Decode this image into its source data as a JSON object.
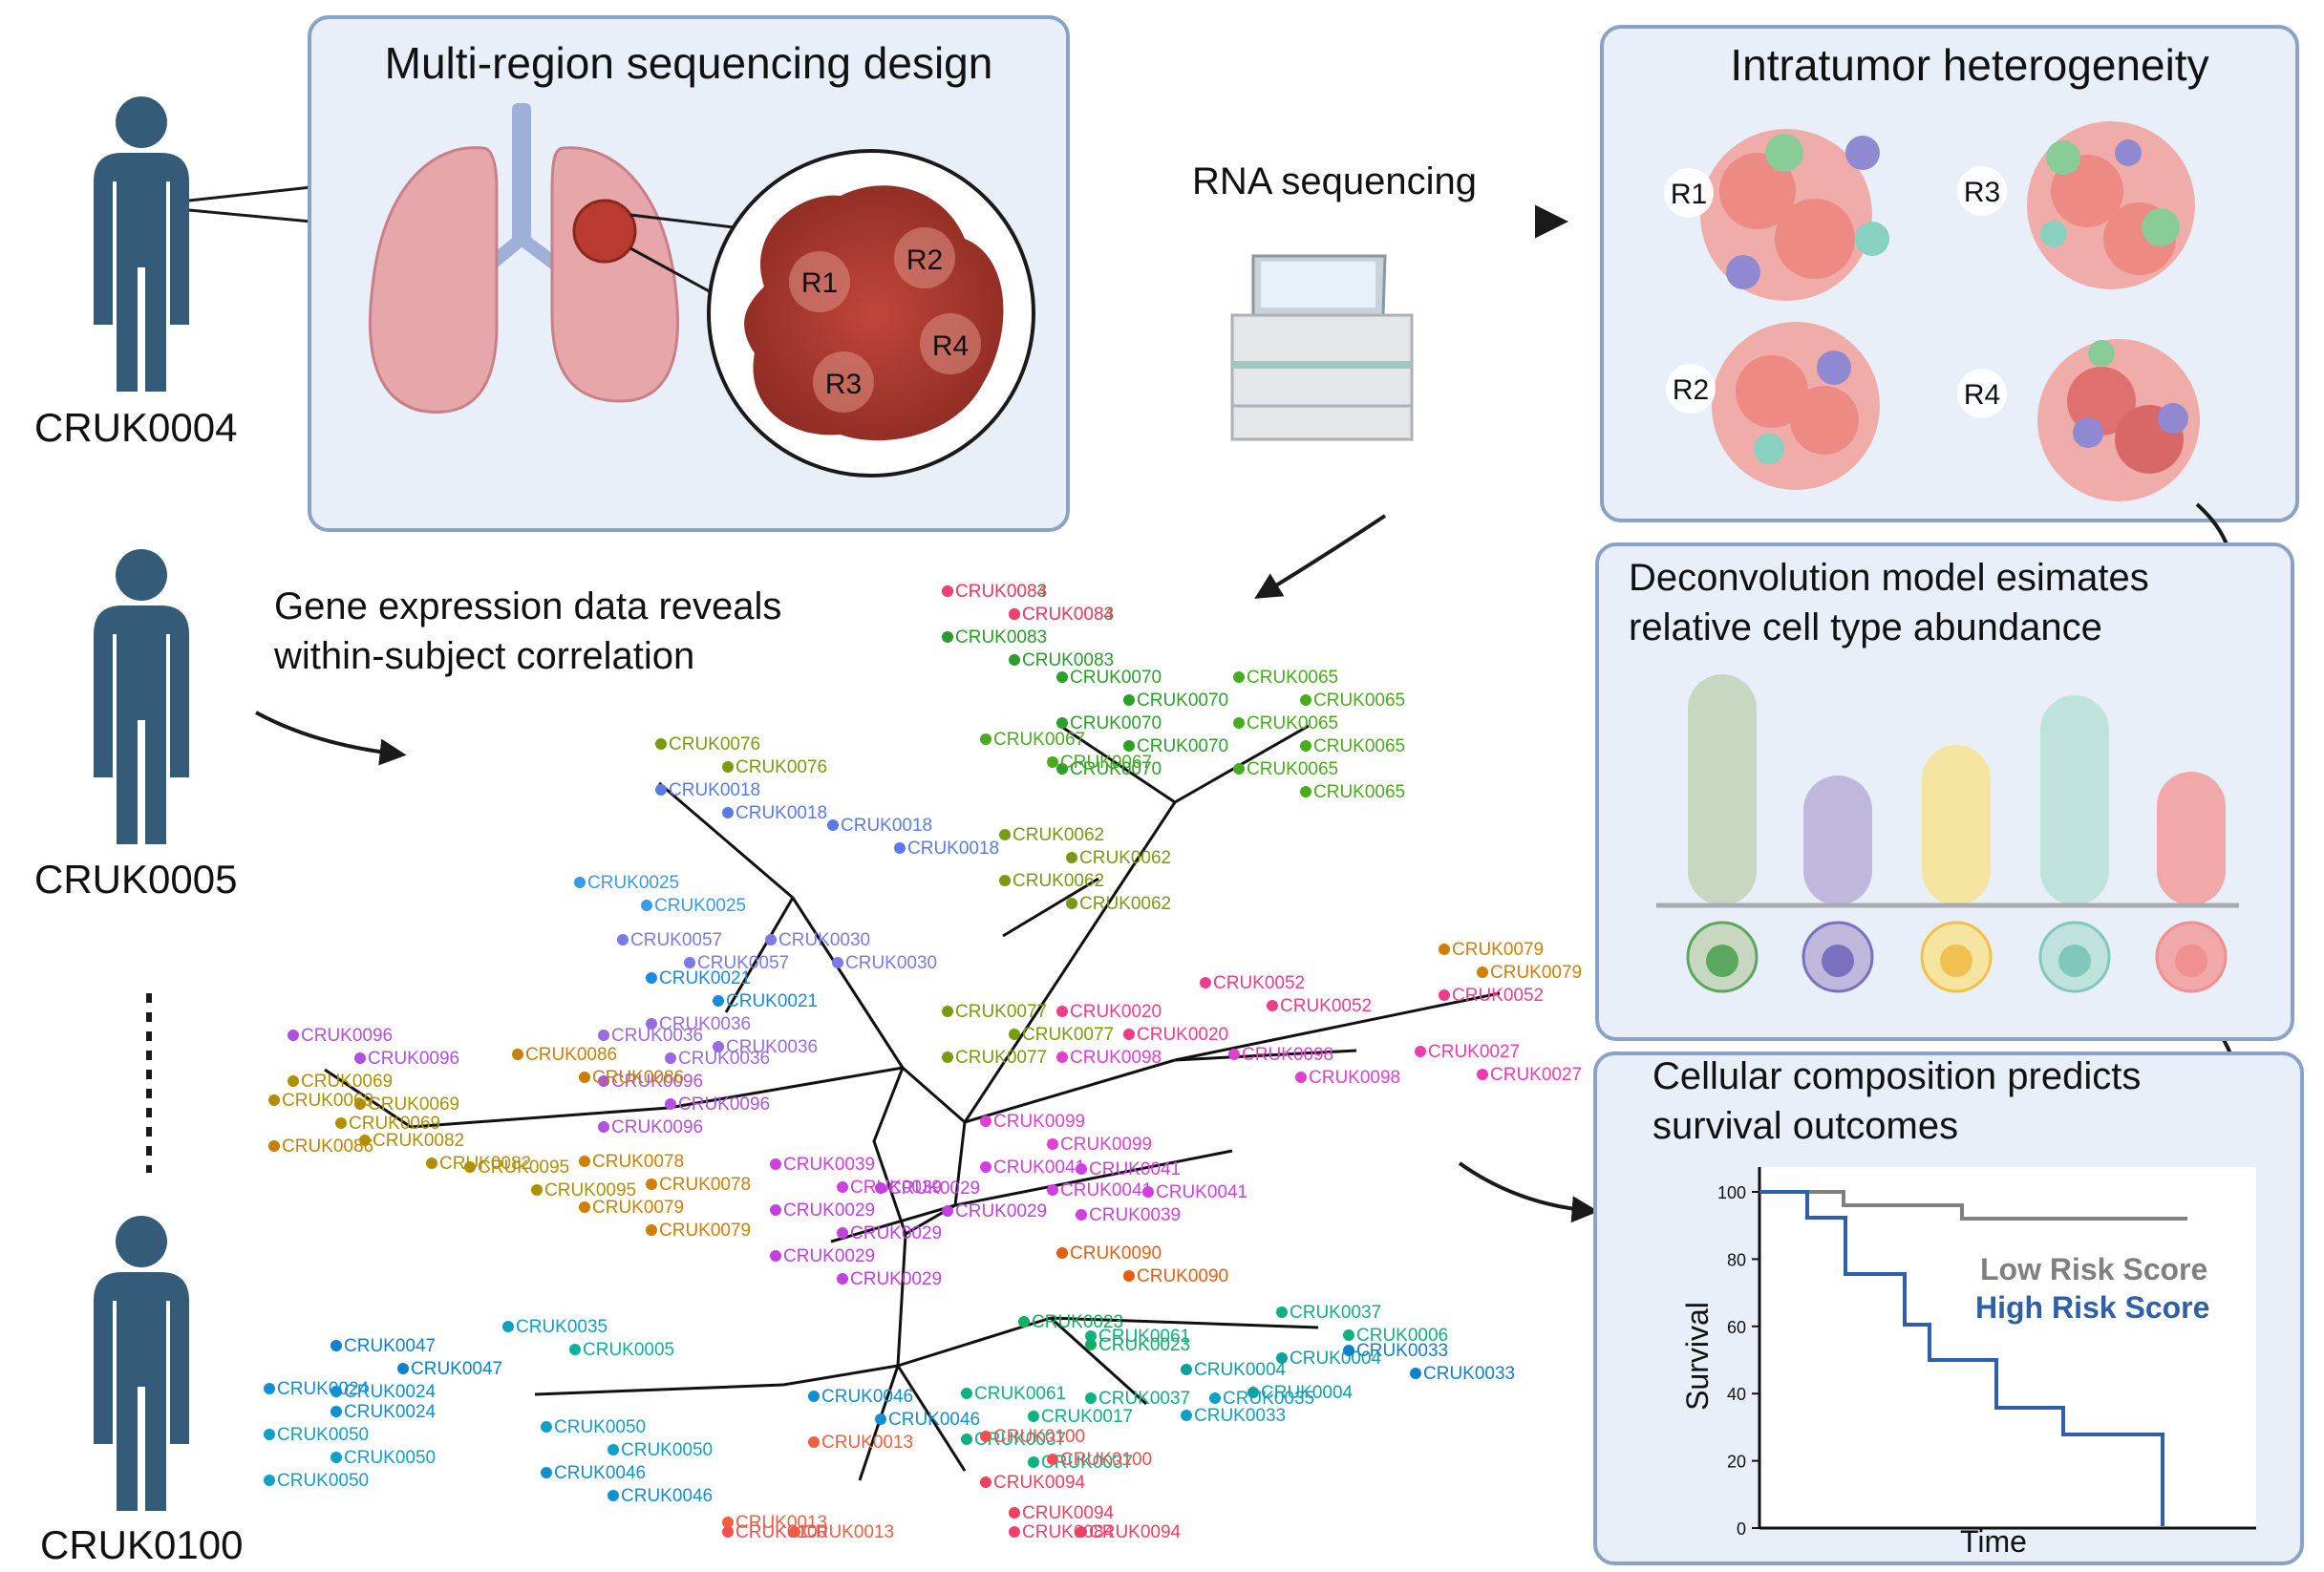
{
  "subjects": [
    "CRUK0004",
    "CRUK0005",
    "CRUK0100"
  ],
  "panels": {
    "design_title": "Multi-region sequencing design",
    "itx_title": "Intratumor heterogeneity",
    "deconv_title_1": "Deconvolution model esimates",
    "deconv_title_2": "relative cell type abundance",
    "surv_title_1": "Cellular composition predicts",
    "surv_title_2": "survival outcomes",
    "gene_title_1": "Gene expression data reveals",
    "gene_title_2": "within-subject correlation"
  },
  "arrow_rna": "RNA sequencing",
  "regions": [
    "R1",
    "R2",
    "R3",
    "R4"
  ],
  "colors": {
    "person": "#345b78",
    "panel_bg": "#e8eff8",
    "panel_border": "#8aa2c8",
    "tumor": "#a8362c",
    "low_risk": "#808080",
    "high_risk": "#2f5fa7"
  },
  "cell_bars": [
    {
      "color": "#c8d8c0",
      "cell": "#5aa860"
    },
    {
      "color": "#c0b8dc",
      "cell": "#7a70c0"
    },
    {
      "color": "#f4e4a0",
      "cell": "#f0c050"
    },
    {
      "color": "#bfe3dc",
      "cell": "#80c8bc"
    },
    {
      "color": "#f0a8a8",
      "cell": "#f09090"
    }
  ],
  "survival": {
    "y_ticks": [
      "100",
      "80",
      "60",
      "40",
      "20",
      "0"
    ],
    "ylabel": "Survival",
    "xlabel": "Time",
    "legend_low": "Low Risk Score",
    "legend_high": "High Risk Score"
  },
  "tree_labels": [
    {
      "t": "CRUK0083",
      "c": "#2c9a2c"
    },
    {
      "t": "CRUK0083",
      "c": "#2c9a2c"
    },
    {
      "t": "CRUK0083",
      "c": "#2c9a2c"
    },
    {
      "t": "CRUK0083",
      "c": "#2c9a2c"
    },
    {
      "t": "CRUK0070",
      "c": "#2ca02c"
    },
    {
      "t": "CRUK0070",
      "c": "#2ca02c"
    },
    {
      "t": "CRUK0070",
      "c": "#2ca02c"
    },
    {
      "t": "CRUK0070",
      "c": "#2ca02c"
    },
    {
      "t": "CRUK0070",
      "c": "#2ca02c"
    },
    {
      "t": "CRUK0065",
      "c": "#4aaa20"
    },
    {
      "t": "CRUK0065",
      "c": "#4aaa20"
    },
    {
      "t": "CRUK0065",
      "c": "#4aaa20"
    },
    {
      "t": "CRUK0065",
      "c": "#4aaa20"
    },
    {
      "t": "CRUK0065",
      "c": "#4aaa20"
    },
    {
      "t": "CRUK0065",
      "c": "#4aaa20"
    },
    {
      "t": "CRUK0067",
      "c": "#4aaa20"
    },
    {
      "t": "CRUK0067",
      "c": "#4aaa20"
    },
    {
      "t": "CRUK0062",
      "c": "#7a9a10"
    },
    {
      "t": "CRUK0062",
      "c": "#7a9a10"
    },
    {
      "t": "CRUK0062",
      "c": "#7a9a10"
    },
    {
      "t": "CRUK0062",
      "c": "#7a9a10"
    },
    {
      "t": "CRUK0077",
      "c": "#7a9a10"
    },
    {
      "t": "CRUK0077",
      "c": "#7a9a10"
    },
    {
      "t": "CRUK0077",
      "c": "#7a9a10"
    },
    {
      "t": "CRUK0076",
      "c": "#7a9a10"
    },
    {
      "t": "CRUK0076",
      "c": "#7a9a10"
    },
    {
      "t": "CRUK0018",
      "c": "#5a7ae8"
    },
    {
      "t": "CRUK0018",
      "c": "#5a7ae8"
    },
    {
      "t": "CRUK0018",
      "c": "#5a7ae8"
    },
    {
      "t": "CRUK0018",
      "c": "#5a7ae8"
    },
    {
      "t": "CRUK0025",
      "c": "#3a9ae8"
    },
    {
      "t": "CRUK0025",
      "c": "#3a9ae8"
    },
    {
      "t": "CRUK0057",
      "c": "#7a7ae8"
    },
    {
      "t": "CRUK0057",
      "c": "#7a7ae8"
    },
    {
      "t": "CRUK0030",
      "c": "#7a7ae8"
    },
    {
      "t": "CRUK0030",
      "c": "#7a7ae8"
    },
    {
      "t": "CRUK0021",
      "c": "#1a8ae0"
    },
    {
      "t": "CRUK0021",
      "c": "#1a8ae0"
    },
    {
      "t": "CRUK0036",
      "c": "#9a6ae0"
    },
    {
      "t": "CRUK0036",
      "c": "#9a6ae0"
    },
    {
      "t": "CRUK0036",
      "c": "#9a6ae0"
    },
    {
      "t": "CRUK0036",
      "c": "#9a6ae0"
    },
    {
      "t": "CRUK0096",
      "c": "#b050e0"
    },
    {
      "t": "CRUK0096",
      "c": "#b050e0"
    },
    {
      "t": "CRUK0096",
      "c": "#b050e0"
    },
    {
      "t": "CRUK0096",
      "c": "#b050e0"
    },
    {
      "t": "CRUK0096",
      "c": "#b050e0"
    },
    {
      "t": "CRUK0069",
      "c": "#b09000"
    },
    {
      "t": "CRUK0069",
      "c": "#b09000"
    },
    {
      "t": "CRUK0069",
      "c": "#b09000"
    },
    {
      "t": "CRUK0069",
      "c": "#b09000"
    },
    {
      "t": "CRUK0086",
      "c": "#c88000"
    },
    {
      "t": "CRUK0086",
      "c": "#c88000"
    },
    {
      "t": "CRUK0086",
      "c": "#c88000"
    },
    {
      "t": "CRUK0082",
      "c": "#b09000"
    },
    {
      "t": "CRUK0082",
      "c": "#b09000"
    },
    {
      "t": "CRUK0095",
      "c": "#b09000"
    },
    {
      "t": "CRUK0095",
      "c": "#b09000"
    },
    {
      "t": "CRUK0078",
      "c": "#d08000"
    },
    {
      "t": "CRUK0078",
      "c": "#d08000"
    },
    {
      "t": "CRUK0079",
      "c": "#d08000"
    },
    {
      "t": "CRUK0079",
      "c": "#d08000"
    },
    {
      "t": "CRUK0079",
      "c": "#d08000"
    },
    {
      "t": "CRUK0079",
      "c": "#d08000"
    },
    {
      "t": "CRUK0052",
      "c": "#f03c8c"
    },
    {
      "t": "CRUK0052",
      "c": "#f03c8c"
    },
    {
      "t": "CRUK0052",
      "c": "#f03c8c"
    },
    {
      "t": "CRUK0027",
      "c": "#f03cb0"
    },
    {
      "t": "CRUK0027",
      "c": "#f03cb0"
    },
    {
      "t": "CRUK0020",
      "c": "#f03c8c"
    },
    {
      "t": "CRUK0020",
      "c": "#f03c8c"
    },
    {
      "t": "CRUK0098",
      "c": "#e040d0"
    },
    {
      "t": "CRUK0098",
      "c": "#e040d0"
    },
    {
      "t": "CRUK0098",
      "c": "#e040d0"
    },
    {
      "t": "CRUK0099",
      "c": "#e040d0"
    },
    {
      "t": "CRUK0099",
      "c": "#e040d0"
    },
    {
      "t": "CRUK0041",
      "c": "#d040e0"
    },
    {
      "t": "CRUK0041",
      "c": "#d040e0"
    },
    {
      "t": "CRUK0041",
      "c": "#d040e0"
    },
    {
      "t": "CRUK0041",
      "c": "#d040e0"
    },
    {
      "t": "CRUK0039",
      "c": "#d040e0"
    },
    {
      "t": "CRUK0039",
      "c": "#d040e0"
    },
    {
      "t": "CRUK0039",
      "c": "#d040e0"
    },
    {
      "t": "CRUK0029",
      "c": "#c040e0"
    },
    {
      "t": "CRUK0029",
      "c": "#c040e0"
    },
    {
      "t": "CRUK0029",
      "c": "#c040e0"
    },
    {
      "t": "CRUK0029",
      "c": "#c040e0"
    },
    {
      "t": "CRUK0029",
      "c": "#c040e0"
    },
    {
      "t": "CRUK0029",
      "c": "#c040e0"
    },
    {
      "t": "CRUK0090",
      "c": "#e06010"
    },
    {
      "t": "CRUK0090",
      "c": "#e06010"
    },
    {
      "t": "CRUK0023",
      "c": "#10b060"
    },
    {
      "t": "CRUK0023",
      "c": "#10b060"
    },
    {
      "t": "CRUK0061",
      "c": "#10b080"
    },
    {
      "t": "CRUK0061",
      "c": "#10b080"
    },
    {
      "t": "CRUK0017",
      "c": "#10b080"
    },
    {
      "t": "CRUK0037",
      "c": "#10b080"
    },
    {
      "t": "CRUK0037",
      "c": "#10b080"
    },
    {
      "t": "CRUK0037",
      "c": "#10b080"
    },
    {
      "t": "CRUK0037",
      "c": "#10b080"
    },
    {
      "t": "CRUK0006",
      "c": "#10b080"
    },
    {
      "t": "CRUK0004",
      "c": "#10a0a0"
    },
    {
      "t": "CRUK0004",
      "c": "#10a0a0"
    },
    {
      "t": "CRUK0004",
      "c": "#10a0a0"
    },
    {
      "t": "CRUK0033",
      "c": "#10a0c0"
    },
    {
      "t": "CRUK0033",
      "c": "#1080d0"
    },
    {
      "t": "CRUK0033",
      "c": "#1080d0"
    },
    {
      "t": "CRUK0035",
      "c": "#10a0c0"
    },
    {
      "t": "CRUK0035",
      "c": "#10a0c0"
    },
    {
      "t": "CRUK0005",
      "c": "#10b0a0"
    },
    {
      "t": "CRUK0047",
      "c": "#1080d0"
    },
    {
      "t": "CRUK0047",
      "c": "#1080d0"
    },
    {
      "t": "CRUK0024",
      "c": "#1090d0"
    },
    {
      "t": "CRUK0024",
      "c": "#1090d0"
    },
    {
      "t": "CRUK0024",
      "c": "#1090d0"
    },
    {
      "t": "CRUK0050",
      "c": "#10a0c8"
    },
    {
      "t": "CRUK0050",
      "c": "#10a0c8"
    },
    {
      "t": "CRUK0050",
      "c": "#10a0c8"
    },
    {
      "t": "CRUK0050",
      "c": "#10a0c8"
    },
    {
      "t": "CRUK0050",
      "c": "#10a0c8"
    },
    {
      "t": "CRUK0046",
      "c": "#1090d0"
    },
    {
      "t": "CRUK0046",
      "c": "#1090d0"
    },
    {
      "t": "CRUK0046",
      "c": "#1090d0"
    },
    {
      "t": "CRUK0046",
      "c": "#1090d0"
    },
    {
      "t": "CRUK0013",
      "c": "#f06040"
    },
    {
      "t": "CRUK0013",
      "c": "#f06040"
    },
    {
      "t": "CRUK0013",
      "c": "#f06040"
    },
    {
      "t": "CRUK0100",
      "c": "#f05050"
    },
    {
      "t": "CRUK0100",
      "c": "#f05050"
    },
    {
      "t": "CRUK0100",
      "c": "#f05050"
    },
    {
      "t": "CRUK0094",
      "c": "#f04060"
    },
    {
      "t": "CRUK0094",
      "c": "#f04060"
    },
    {
      "t": "CRUK0094",
      "c": "#f04060"
    },
    {
      "t": "CRUK0084",
      "c": "#f04070"
    },
    {
      "t": "CRUK0084",
      "c": "#f04070"
    },
    {
      "t": "CRUK0084",
      "c": "#f04070"
    }
  ]
}
